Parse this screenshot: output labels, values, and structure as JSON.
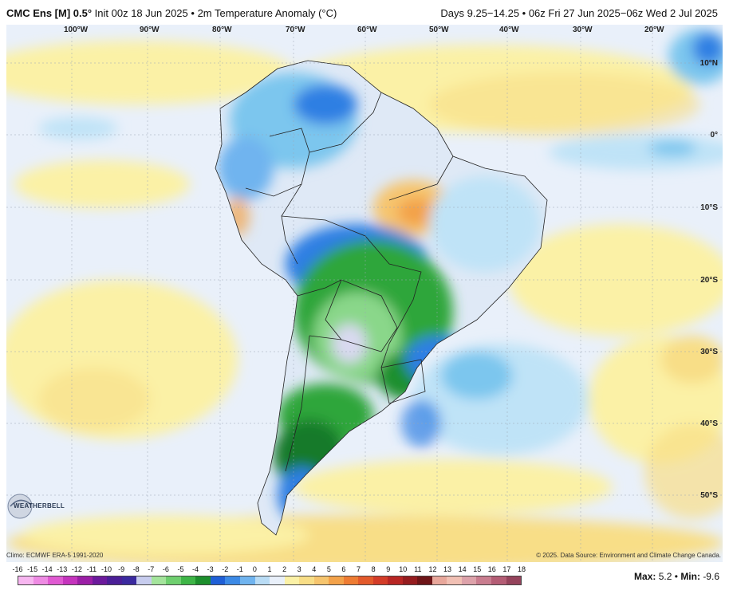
{
  "header": {
    "model": "CMC Ens [M] 0.5",
    "degree": "°",
    "init": "Init 00z 18 Jun 2025",
    "sep": "•",
    "variable": "2m Temperature Anomaly (°C)",
    "valid": "Days 9.25−14.25 • 06z Fri 27 Jun 2025−06z Wed 2 Jul 2025"
  },
  "map": {
    "longitude_labels": [
      "100°W",
      "90°W",
      "80°W",
      "70°W",
      "60°W",
      "50°W",
      "40°W",
      "30°W",
      "20°W"
    ],
    "latitude_labels": [
      "10°N",
      "0°",
      "10°S",
      "20°S",
      "30°S",
      "40°S",
      "50°S"
    ],
    "colors": {
      "background": "#e9f0fa",
      "warm_light": "#fbf1a6",
      "warm": "#f6cf7b",
      "warm_strong": "#f3a24a",
      "cool_light": "#bfe3f7",
      "cool": "#7cc6ee",
      "cool_strong": "#2f7fe3",
      "cold_green_light": "#8ad78a",
      "cold_green": "#2fa63a",
      "cold_green_dark": "#137a2a",
      "cold_lavender": "#d9d9f0"
    }
  },
  "logo": {
    "text": "WEATHERBELL"
  },
  "footer": {
    "climo": "Climo: ECMWF ERA-5 1991-2020",
    "credit": "© 2025. Data Source: Environment and Climate Change Canada.",
    "max_label": "Max:",
    "max_value": "5.2",
    "min_label": "Min:",
    "min_value": "-9.6",
    "separator": "•"
  },
  "colorbar": {
    "labels": [
      "-16",
      "-15",
      "-14",
      "-13",
      "-12",
      "-11",
      "-10",
      "-9",
      "-8",
      "-7",
      "-6",
      "-5",
      "-4",
      "-3",
      "-2",
      "-1",
      "0",
      "1",
      "2",
      "3",
      "4",
      "5",
      "6",
      "7",
      "8",
      "9",
      "10",
      "11",
      "12",
      "13",
      "14",
      "15",
      "16",
      "17",
      "18"
    ],
    "colors": [
      "#f7b6f0",
      "#ee8be3",
      "#e05ad2",
      "#c534bd",
      "#9b1fa6",
      "#6c1a9c",
      "#4b1f97",
      "#3b2a9f",
      "#c7ccee",
      "#a4e49c",
      "#6fcf6f",
      "#3eb547",
      "#1d8f2d",
      "#1f5fd6",
      "#3c8ae6",
      "#70b4ef",
      "#b9dcf5",
      "#e9f0fa",
      "#fbf1a6",
      "#f8de87",
      "#f6c56e",
      "#f3a24a",
      "#ee7c33",
      "#e35a2b",
      "#d33c28",
      "#b82624",
      "#951c1f",
      "#6e1518",
      "#e8a79b",
      "#f1c0b4",
      "#dda2aa",
      "#c97d8f",
      "#b45d75",
      "#95435c"
    ]
  }
}
